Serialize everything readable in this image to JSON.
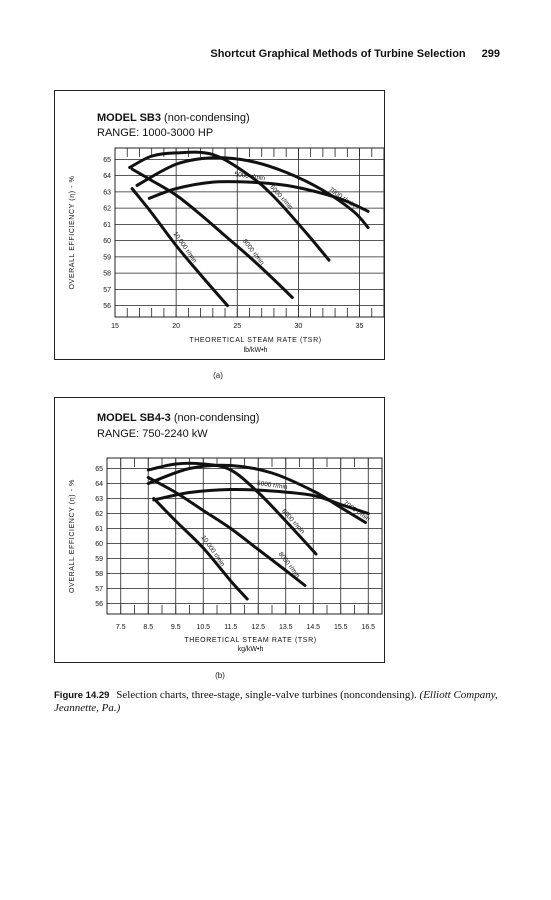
{
  "header": {
    "running_title": "Shortcut Graphical Methods of Turbine Selection",
    "page_number": "299"
  },
  "chart_data": [
    {
      "panel": "(a)",
      "type": "line",
      "title_bold": "MODEL SB3",
      "title_rest": " (non-condensing)",
      "range_label": "RANGE: 1000-3000 HP",
      "ylabel": "OVERALL EFFICIENCY (η) - %",
      "xlabel": "THEORETICAL STEAM RATE (TSR)",
      "xunits": "lb/kW•h",
      "xlim": [
        15,
        37
      ],
      "ylim": [
        55.3,
        65.7
      ],
      "x_ticks": [
        "15",
        "20",
        "25",
        "30",
        "35"
      ],
      "x_tick_values": [
        15,
        20,
        25,
        30,
        35
      ],
      "y_ticks": [
        "56",
        "57",
        "58",
        "59",
        "60",
        "61",
        "62",
        "63",
        "64",
        "65"
      ],
      "y_tick_values": [
        56,
        57,
        58,
        59,
        60,
        61,
        62,
        63,
        64,
        65
      ],
      "series": [
        {
          "name": "7000 r/min",
          "x": [
            16.8,
            20,
            23,
            26,
            29,
            32,
            34.5,
            35.7
          ],
          "y": [
            63.4,
            64.7,
            65.1,
            64.9,
            64.2,
            63.1,
            61.8,
            60.8
          ]
        },
        {
          "name": "5000 r/min",
          "x": [
            17.8,
            20,
            23,
            26,
            29,
            32,
            34,
            35.7
          ],
          "y": [
            62.6,
            63.2,
            63.6,
            63.6,
            63.4,
            62.9,
            62.4,
            61.8
          ]
        },
        {
          "name": "6000 r/min",
          "x": [
            16.2,
            18,
            20,
            23,
            26,
            28,
            30.5,
            32.5
          ],
          "y": [
            64.5,
            65.2,
            65.4,
            65.3,
            64.0,
            62.7,
            60.6,
            58.8
          ]
        },
        {
          "name": "8000 r/min",
          "x": [
            16.4,
            18,
            20,
            22,
            24,
            26,
            28,
            29.5
          ],
          "y": [
            64.4,
            63.7,
            62.8,
            61.6,
            60.3,
            59.0,
            57.6,
            56.5
          ]
        },
        {
          "name": "10,000 r/min",
          "x": [
            16.4,
            18,
            20,
            22,
            24.2
          ],
          "y": [
            63.2,
            61.7,
            59.7,
            57.9,
            56.0
          ]
        }
      ]
    },
    {
      "panel": "(b)",
      "type": "line",
      "title_bold": "MODEL SB4-3",
      "title_rest": " (non-condensing)",
      "range_label": "RANGE: 750-2240 kW",
      "ylabel": "OVERALL EFFICIENCY (η) - %",
      "xlabel": "THEORETICAL STEAM RATE (TSR)",
      "xunits": "kg/kW•h",
      "xlim": [
        7.0,
        17.0
      ],
      "ylim": [
        55.3,
        65.7
      ],
      "x_ticks": [
        "7.5",
        "8.5",
        "9.5",
        "10.5",
        "11.5",
        "12.5",
        "13.5",
        "14.5",
        "15.5",
        "16.5"
      ],
      "x_tick_values": [
        7.5,
        8.5,
        9.5,
        10.5,
        11.5,
        12.5,
        13.5,
        14.5,
        15.5,
        16.5
      ],
      "y_ticks": [
        "56",
        "57",
        "58",
        "59",
        "60",
        "61",
        "62",
        "63",
        "64",
        "65"
      ],
      "y_tick_values": [
        56,
        57,
        58,
        59,
        60,
        61,
        62,
        63,
        64,
        65
      ],
      "series": [
        {
          "name": "7000 r/min",
          "x": [
            8.5,
            10,
            11.5,
            13,
            14.5,
            15.5,
            16.4
          ],
          "y": [
            64.0,
            65.0,
            65.2,
            64.7,
            63.5,
            62.4,
            61.4
          ]
        },
        {
          "name": "5000 r/min",
          "x": [
            8.7,
            10,
            11.5,
            13,
            14.5,
            15.5,
            16.5
          ],
          "y": [
            62.9,
            63.4,
            63.6,
            63.5,
            63.2,
            62.6,
            62.0
          ]
        },
        {
          "name": "6000 r/min",
          "x": [
            8.5,
            9.5,
            10.5,
            11.5,
            12.5,
            13.5,
            14.6
          ],
          "y": [
            64.9,
            65.3,
            65.3,
            64.9,
            63.4,
            61.5,
            59.3
          ]
        },
        {
          "name": "8000 r/min",
          "x": [
            8.5,
            9.5,
            10.5,
            11.5,
            12.5,
            13.5,
            14.2
          ],
          "y": [
            64.4,
            63.4,
            62.2,
            61.0,
            59.6,
            58.2,
            57.2
          ]
        },
        {
          "name": "10,000 r/min",
          "x": [
            8.7,
            9.5,
            10.5,
            11.5,
            12.1
          ],
          "y": [
            63.0,
            61.5,
            59.7,
            57.5,
            56.3
          ]
        }
      ]
    }
  ],
  "figure": {
    "label_a": "(a)",
    "label_b": "(b)",
    "caption_label": "Figure 14.29",
    "caption_text": "Selection charts, three-stage, single-valve turbines (noncondensing).",
    "caption_credit": "(Elliott Company, Jeannette, Pa.)"
  }
}
